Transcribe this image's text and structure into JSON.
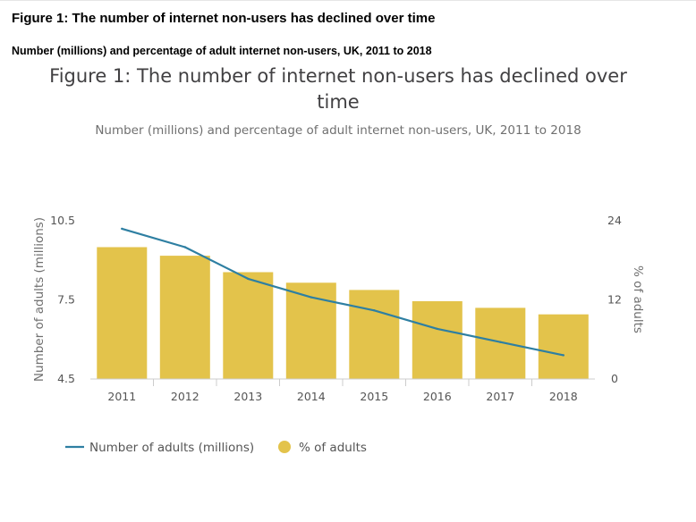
{
  "page": {
    "heading": "Figure 1: The number of internet non-users has declined over time",
    "subheading": "Number (millions) and percentage of adult internet non-users, UK, 2011 to 2018"
  },
  "chart_data": {
    "type": "bar",
    "title_lines": [
      "Figure 1: The number of internet non-users has declined over",
      "time"
    ],
    "subtitle": "Number (millions) and percentage of adult internet non-users, UK, 2011 to 2018",
    "categories": [
      "2011",
      "2012",
      "2013",
      "2014",
      "2015",
      "2016",
      "2017",
      "2018"
    ],
    "series": [
      {
        "name": "% of adults",
        "kind": "bar",
        "axis": "right",
        "color": "#e3c34b",
        "values": [
          20.0,
          18.7,
          16.2,
          14.6,
          13.5,
          11.8,
          10.8,
          9.8
        ]
      },
      {
        "name": "Number of adults (millions)",
        "kind": "line",
        "axis": "left",
        "color": "#2e7fa2",
        "values": [
          10.2,
          9.5,
          8.3,
          7.6,
          7.1,
          6.4,
          5.9,
          5.4
        ]
      }
    ],
    "y_left": {
      "label": "Number of adults (millions)",
      "range": [
        4.5,
        10.5
      ],
      "ticks": [
        "4.5",
        "7.5",
        "10.5"
      ]
    },
    "y_right": {
      "label": "% of adults",
      "range": [
        0,
        24
      ],
      "ticks": [
        "0",
        "12",
        "24"
      ]
    },
    "grid": false,
    "legend_position": "bottom-left"
  }
}
